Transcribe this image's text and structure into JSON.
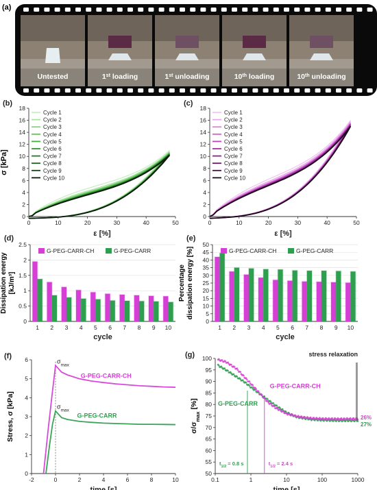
{
  "colors": {
    "magenta": "#d63fd6",
    "green": "#2e9e4f",
    "film": "#0a0a0a",
    "axis": "#333333",
    "grid": "#e2e2e2"
  },
  "panel_a": {
    "letter": "(a)",
    "frames": [
      "Untested",
      "1st loading",
      "1st unloading",
      "10th loading",
      "10th unloading"
    ],
    "frames_rich": [
      {
        "pre": "Untested",
        "sup": "",
        "post": ""
      },
      {
        "pre": "1",
        "sup": "st",
        "post": " loading"
      },
      {
        "pre": "1",
        "sup": "st",
        "post": " unloading"
      },
      {
        "pre": "10",
        "sup": "th",
        "post": " loading"
      },
      {
        "pre": "10",
        "sup": "th",
        "post": " unloading"
      }
    ]
  },
  "chart_data": [
    {
      "id": "b",
      "letter": "(b)",
      "type": "line",
      "xlabel": "ε [%]",
      "ylabel": "σ [kPa]",
      "xlim": [
        0,
        50
      ],
      "ylim": [
        0,
        18
      ],
      "xticks": [
        0,
        10,
        20,
        30,
        40,
        50
      ],
      "yticks": [
        0,
        2,
        4,
        6,
        8,
        10,
        12,
        14,
        16,
        18
      ],
      "legend": "top-left",
      "series": [
        {
          "name": "Cycle 1",
          "color": "#c9efc4",
          "peak": 11.0,
          "load_k": 1.0
        },
        {
          "name": "Cycle 2",
          "color": "#a9e3a2",
          "peak": 10.8,
          "load_k": 0.86
        },
        {
          "name": "Cycle 3",
          "color": "#86d37e",
          "peak": 10.7,
          "load_k": 0.8
        },
        {
          "name": "Cycle 4",
          "color": "#62c15a",
          "peak": 10.6,
          "load_k": 0.76
        },
        {
          "name": "Cycle 5",
          "color": "#43ad3f",
          "peak": 10.5,
          "load_k": 0.73
        },
        {
          "name": "Cycle 6",
          "color": "#2f962f",
          "peak": 10.4,
          "load_k": 0.71
        },
        {
          "name": "Cycle 7",
          "color": "#237a26",
          "peak": 10.4,
          "load_k": 0.69
        },
        {
          "name": "Cycle 8",
          "color": "#1b5e1e",
          "peak": 10.3,
          "load_k": 0.68
        },
        {
          "name": "Cycle 9",
          "color": "#123f14",
          "peak": 10.3,
          "load_k": 0.67
        },
        {
          "name": "Cycle 10",
          "color": "#0a1a0a",
          "peak": 10.2,
          "load_k": 0.66
        }
      ]
    },
    {
      "id": "c",
      "letter": "(c)",
      "type": "line",
      "xlabel": "ε [%]",
      "ylabel": "",
      "xlim": [
        0,
        50
      ],
      "ylim": [
        0,
        18
      ],
      "xticks": [
        0,
        10,
        20,
        30,
        40,
        50
      ],
      "yticks": [
        0,
        2,
        4,
        6,
        8,
        10,
        12,
        14,
        16,
        18
      ],
      "legend": "top-left",
      "series": [
        {
          "name": "Cycle 1",
          "color": "#f2c6f2",
          "peak": 16.0,
          "load_k": 1.0
        },
        {
          "name": "Cycle 2",
          "color": "#e9a6e9",
          "peak": 15.8,
          "load_k": 0.9
        },
        {
          "name": "Cycle 3",
          "color": "#dd84dd",
          "peak": 15.6,
          "load_k": 0.85
        },
        {
          "name": "Cycle 4",
          "color": "#cf62cf",
          "peak": 15.5,
          "load_k": 0.82
        },
        {
          "name": "Cycle 5",
          "color": "#bd44bd",
          "peak": 15.4,
          "load_k": 0.8
        },
        {
          "name": "Cycle 6",
          "color": "#a52fa5",
          "peak": 15.3,
          "load_k": 0.78
        },
        {
          "name": "Cycle 7",
          "color": "#872387",
          "peak": 15.2,
          "load_k": 0.77
        },
        {
          "name": "Cycle 8",
          "color": "#651a65",
          "peak": 15.1,
          "load_k": 0.76
        },
        {
          "name": "Cycle 9",
          "color": "#421142",
          "peak": 15.0,
          "load_k": 0.75
        },
        {
          "name": "Cycle 10",
          "color": "#1a081a",
          "peak": 15.0,
          "load_k": 0.74
        }
      ]
    },
    {
      "id": "d",
      "letter": "(d)",
      "type": "bar",
      "xlabel": "cycle",
      "ylabel_lines": [
        "Dissipation energy",
        "[kJ/m³]"
      ],
      "ylim": [
        0,
        2.5
      ],
      "yticks": [
        0,
        0.5,
        1,
        1.5,
        2,
        2.5
      ],
      "categories": [
        "1",
        "2",
        "3",
        "4",
        "5",
        "6",
        "7",
        "8",
        "9",
        "10"
      ],
      "legend": "top",
      "series": [
        {
          "name": "G-PEG-CARR-CH",
          "color": "#d63fd6",
          "values": [
            1.95,
            1.28,
            1.12,
            1.02,
            0.95,
            0.9,
            0.87,
            0.85,
            0.83,
            0.82
          ]
        },
        {
          "name": "G-PEG-CARR",
          "color": "#2e9e4f",
          "values": [
            1.38,
            0.85,
            0.78,
            0.74,
            0.72,
            0.68,
            0.67,
            0.66,
            0.65,
            0.63
          ]
        }
      ]
    },
    {
      "id": "e",
      "letter": "(e)",
      "type": "bar",
      "xlabel": "cycle",
      "ylabel_lines": [
        "Percentage",
        "dissipation energy [%]"
      ],
      "ylim": [
        0,
        50
      ],
      "yticks": [
        0,
        5,
        10,
        15,
        20,
        25,
        30,
        35,
        40,
        45,
        50
      ],
      "categories": [
        "1",
        "2",
        "3",
        "4",
        "5",
        "6",
        "7",
        "8",
        "9",
        "10"
      ],
      "legend": "top",
      "series": [
        {
          "name": "G-PEG-CARR-CH",
          "color": "#d63fd6",
          "values": [
            42.0,
            32.5,
            30.5,
            28.5,
            27.0,
            26.5,
            26.0,
            25.8,
            25.5,
            25.2
          ]
        },
        {
          "name": "G-PEG-CARR",
          "color": "#2e9e4f",
          "values": [
            44.5,
            35.0,
            34.5,
            34.0,
            33.8,
            33.2,
            33.0,
            33.0,
            32.8,
            32.5
          ]
        }
      ]
    },
    {
      "id": "f",
      "letter": "(f)",
      "type": "line",
      "xlabel": "time [s]",
      "ylabel": "Stress, σ [kPa]",
      "xlim": [
        -2,
        10
      ],
      "ylim": [
        0,
        6
      ],
      "xticks": [
        -2,
        0,
        2,
        4,
        6,
        8,
        10
      ],
      "yticks": [
        0,
        1,
        2,
        3,
        4,
        5,
        6
      ],
      "annotations": [
        {
          "text": "σ",
          "sub": "max",
          "x": 0,
          "y": 5.7
        },
        {
          "text": "σ",
          "sub": "max",
          "x": 0,
          "y": 3.3
        }
      ],
      "series": [
        {
          "name": "G-PEG-CARR-CH",
          "color": "#d63fd6",
          "x": [
            -1.0,
            -0.6,
            -0.3,
            0.0,
            0.5,
            1.0,
            2.0,
            3.0,
            4.0,
            5.0,
            6.0,
            7.0,
            8.0,
            9.0,
            10.0
          ],
          "y": [
            0.0,
            2.4,
            4.1,
            5.7,
            5.35,
            5.2,
            5.0,
            4.88,
            4.8,
            4.73,
            4.68,
            4.63,
            4.6,
            4.57,
            4.55
          ]
        },
        {
          "name": "G-PEG-CARR",
          "color": "#2e9e4f",
          "x": [
            -0.8,
            -0.5,
            -0.25,
            0.0,
            0.5,
            1.0,
            2.0,
            3.0,
            4.0,
            5.0,
            6.0,
            7.0,
            8.0,
            9.0,
            10.0
          ],
          "y": [
            0.0,
            1.5,
            2.6,
            3.3,
            2.95,
            2.85,
            2.75,
            2.7,
            2.66,
            2.64,
            2.62,
            2.6,
            2.6,
            2.59,
            2.58
          ]
        }
      ]
    },
    {
      "id": "g",
      "letter": "(g)",
      "type": "scatter",
      "xlabel": "time [s]",
      "ylabel": "σ/σ",
      "ylabel_sub": "max",
      "ylabel_tail": " [%]",
      "xscale": "log",
      "xlim": [
        0.1,
        1000
      ],
      "ylim": [
        50,
        100
      ],
      "xticks": [
        0.1,
        1,
        10,
        100,
        1000
      ],
      "xtick_labels": [
        "0.1",
        "1",
        "10",
        "100",
        "1000"
      ],
      "yticks": [
        50,
        55,
        60,
        65,
        70,
        75,
        80,
        85,
        90,
        95,
        100
      ],
      "title": "stress relaxation",
      "half_times": [
        {
          "label": "t",
          "sub": "1/2",
          "tail": " = 0.8 s",
          "x": 0.8,
          "color": "#2e9e4f"
        },
        {
          "label": "t",
          "sub": "1/2",
          "tail": " = 2.4 s",
          "x": 2.4,
          "color": "#d63fd6"
        }
      ],
      "end_labels": [
        {
          "text": "26%",
          "color": "#d63fd6"
        },
        {
          "text": "27%",
          "color": "#2e9e4f"
        }
      ],
      "series": [
        {
          "name": "G-PEG-CARR-CH",
          "color": "#d63fd6",
          "x": [
            0.12,
            0.2,
            0.4,
            0.7,
            1.0,
            2.0,
            3.0,
            5.0,
            10,
            20,
            50,
            100,
            300,
            1000
          ],
          "y": [
            99.5,
            98.5,
            95.5,
            91.5,
            89.0,
            84.0,
            81.0,
            78.5,
            76.0,
            74.8,
            74.0,
            73.8,
            73.7,
            73.8
          ]
        },
        {
          "name": "G-PEG-CARR",
          "color": "#2e9e4f",
          "x": [
            0.12,
            0.2,
            0.4,
            0.7,
            1.0,
            2.0,
            3.0,
            5.0,
            10,
            20,
            50,
            100,
            300,
            1000
          ],
          "y": [
            97.0,
            95.0,
            92.0,
            89.5,
            87.5,
            84.0,
            82.0,
            79.5,
            76.5,
            74.5,
            73.5,
            73.2,
            73.0,
            73.0
          ]
        }
      ]
    }
  ]
}
